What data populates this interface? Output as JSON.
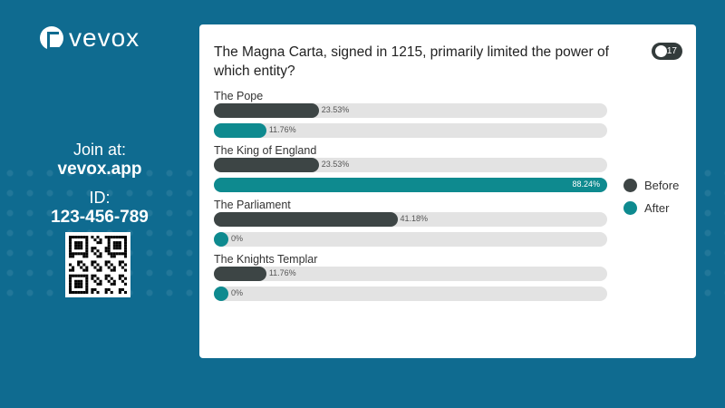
{
  "brand": {
    "name": "vevox"
  },
  "join": {
    "label": "Join at:",
    "url": "vevox.app",
    "id_label": "ID:",
    "id": "123-456-789"
  },
  "participants": "17",
  "colors": {
    "before": "#3d4545",
    "after": "#0e8a8f",
    "track": "#e3e3e3",
    "background": "#0f6b90"
  },
  "chart_data": {
    "type": "bar",
    "orientation": "horizontal",
    "title": "The Magna Carta, signed in 1215, primarily limited the power of which entity?",
    "categories": [
      "The Pope",
      "The King of England",
      "The Parliament",
      "The Knights Templar"
    ],
    "series": [
      {
        "name": "Before",
        "values": [
          23.53,
          23.53,
          41.18,
          11.76
        ],
        "labels": [
          "23.53%",
          "23.53%",
          "41.18%",
          "11.76%"
        ]
      },
      {
        "name": "After",
        "values": [
          11.76,
          88.24,
          0,
          0
        ],
        "labels": [
          "11.76%",
          "88.24%",
          "0%",
          "0%"
        ]
      }
    ],
    "legend": "right"
  }
}
